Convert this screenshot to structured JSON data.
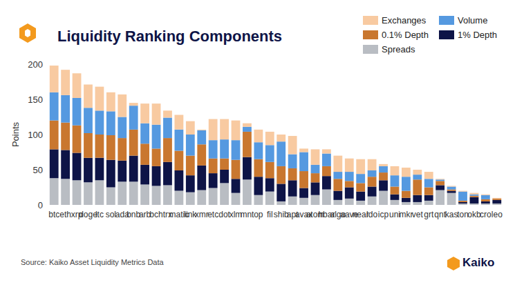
{
  "chart_data": {
    "type": "bar",
    "title": "Liquidity Ranking Components",
    "ylabel": "Points",
    "annotations": [
      "Source: Kaiko Asset Liquidity Metrics Data",
      "Kaiko"
    ],
    "categories": [
      "btc",
      "eth",
      "xrp",
      "doge",
      "ltc",
      "sol",
      "ada",
      "bnb",
      "arb",
      "bch",
      "trx",
      "matic",
      "link",
      "xmr",
      "etc",
      "dot",
      "xlm",
      "mnt",
      "op",
      "fil",
      "shib",
      "apt",
      "avax",
      "atom",
      "hbar",
      "algo",
      "aave",
      "near",
      "ldo",
      "icp",
      "uni",
      "mkr",
      "vet",
      "grt",
      "qnt",
      "kas",
      "ton",
      "okb",
      "cro",
      "leo"
    ],
    "series": [
      {
        "name": "Spreads",
        "color": "#b9bdc3",
        "values": [
          38,
          37,
          35,
          32,
          35,
          25,
          33,
          33,
          29,
          27,
          28,
          20,
          18,
          21,
          24,
          31,
          17,
          36,
          14,
          19,
          5,
          12,
          10,
          14,
          22,
          7,
          9,
          6,
          12,
          20,
          7,
          4,
          4,
          6,
          21,
          17,
          2,
          2,
          2,
          2
        ]
      },
      {
        "name": "1% Depth",
        "color": "#0e1447",
        "values": [
          41,
          41,
          39,
          35,
          32,
          39,
          30,
          37,
          28,
          28,
          33,
          29,
          24,
          35,
          21,
          19,
          20,
          32,
          26,
          19,
          25,
          23,
          14,
          18,
          19,
          13,
          16,
          13,
          14,
          15,
          8,
          6,
          10,
          8,
          7,
          3,
          2,
          9,
          3,
          5
        ]
      },
      {
        "name": "0.1% Depth",
        "color": "#c9772f",
        "values": [
          41,
          39,
          39,
          35,
          33,
          35,
          32,
          37,
          30,
          25,
          34,
          28,
          28,
          30,
          21,
          16,
          27,
          36,
          25,
          23,
          25,
          17,
          24,
          13,
          14,
          17,
          9,
          12,
          14,
          11,
          11,
          10,
          22,
          11,
          6,
          2,
          2,
          2,
          3,
          2
        ]
      },
      {
        "name": "Volume",
        "color": "#5599e0",
        "values": [
          40,
          39,
          39,
          36,
          34,
          34,
          30,
          34,
          29,
          34,
          29,
          30,
          30,
          20,
          26,
          27,
          28,
          7,
          24,
          24,
          35,
          20,
          27,
          12,
          18,
          10,
          13,
          13,
          9,
          9,
          16,
          20,
          7,
          12,
          2,
          4,
          13,
          2,
          6,
          0
        ]
      },
      {
        "name": "Exchanges",
        "color": "#f8caa1",
        "values": [
          38,
          36,
          35,
          33,
          34,
          27,
          32,
          4,
          28,
          30,
          10,
          21,
          19,
          1,
          30,
          29,
          28,
          5,
          18,
          19,
          10,
          26,
          5,
          22,
          6,
          23,
          19,
          21,
          16,
          3,
          13,
          13,
          7,
          10,
          1,
          1,
          1,
          2,
          1,
          1
        ]
      }
    ],
    "stacked": true,
    "ylim": [
      0,
      200
    ],
    "yticks": [
      0,
      50,
      100,
      150,
      200
    ],
    "grid": false,
    "legend": "top-right"
  }
}
